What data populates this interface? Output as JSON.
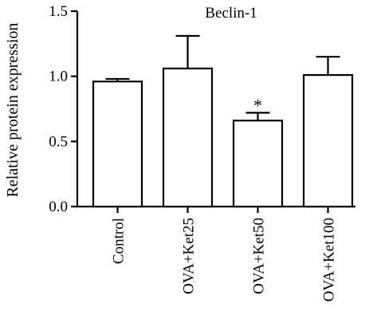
{
  "chart_data": {
    "type": "bar",
    "title": "Beclin-1",
    "ylabel": "Relative protein expression",
    "xlabel": "",
    "categories": [
      "Control",
      "OVA+Ket25",
      "OVA+Ket50",
      "OVA+Ket100"
    ],
    "values": [
      0.96,
      1.06,
      0.66,
      1.01
    ],
    "error": [
      0.02,
      0.25,
      0.06,
      0.14
    ],
    "annotations": [
      "",
      "",
      "*",
      ""
    ],
    "ylim": [
      0.0,
      1.5
    ],
    "yticks": [
      "0.0",
      "0.5",
      "1.0",
      "1.5"
    ],
    "grid": false,
    "colors": {
      "bar_fill": "#ffffff",
      "stroke": "#000000"
    }
  }
}
